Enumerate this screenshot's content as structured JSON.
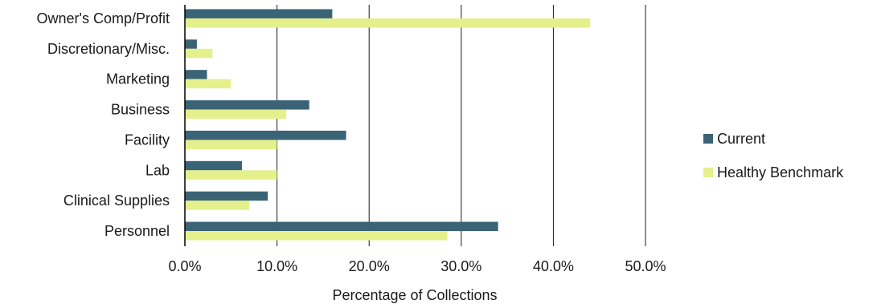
{
  "chart_data": {
    "type": "bar",
    "orientation": "horizontal",
    "title": "",
    "xlabel": "Percentage of Collections",
    "ylabel": "",
    "xlim": [
      0,
      50
    ],
    "x_ticks": [
      "0.0%",
      "10.0%",
      "20.0%",
      "30.0%",
      "40.0%",
      "50.0%"
    ],
    "x_tick_values": [
      0,
      10,
      20,
      30,
      40,
      50
    ],
    "grid": "vertical",
    "legend": "right",
    "categories": [
      "Owner's Comp/Profit",
      "Discretionary/Misc.",
      "Marketing",
      "Business",
      "Facility",
      "Lab",
      "Clinical Supplies",
      "Personnel"
    ],
    "series": [
      {
        "name": "Current",
        "color": "#3b6376",
        "values": [
          16,
          1.3,
          2.4,
          13.5,
          17.5,
          6.2,
          9,
          34
        ]
      },
      {
        "name": "Healthy Benchmark",
        "color": "#e3f08c",
        "values": [
          44,
          3,
          5,
          11,
          10,
          10,
          7,
          28.5
        ]
      }
    ]
  }
}
